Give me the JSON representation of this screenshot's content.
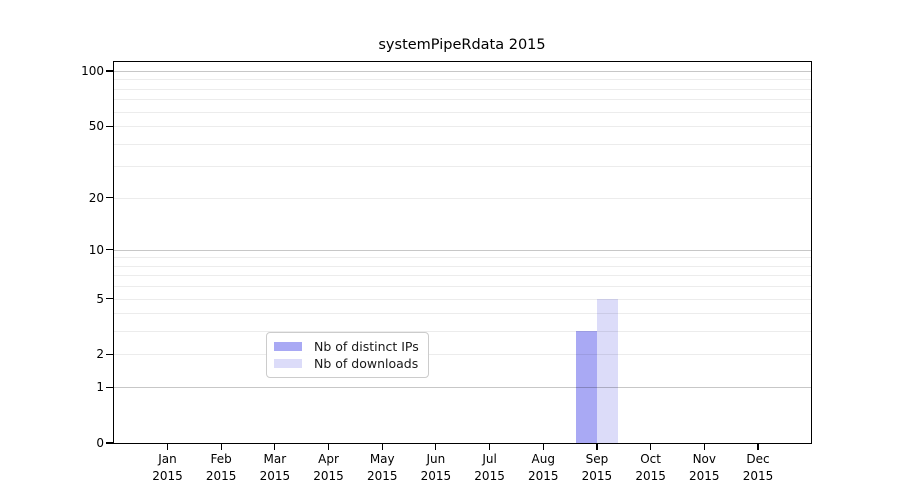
{
  "chart_data": {
    "type": "bar",
    "title": "systemPipeRdata 2015",
    "x_categories": [
      {
        "month": "Jan",
        "year": "2015"
      },
      {
        "month": "Feb",
        "year": "2015"
      },
      {
        "month": "Mar",
        "year": "2015"
      },
      {
        "month": "Apr",
        "year": "2015"
      },
      {
        "month": "May",
        "year": "2015"
      },
      {
        "month": "Jun",
        "year": "2015"
      },
      {
        "month": "Jul",
        "year": "2015"
      },
      {
        "month": "Aug",
        "year": "2015"
      },
      {
        "month": "Sep",
        "year": "2015"
      },
      {
        "month": "Oct",
        "year": "2015"
      },
      {
        "month": "Nov",
        "year": "2015"
      },
      {
        "month": "Dec",
        "year": "2015"
      }
    ],
    "series": [
      {
        "name": "Nb of distinct IPs",
        "color": "#a9a9f4",
        "values": [
          0,
          0,
          0,
          0,
          0,
          0,
          0,
          0,
          3,
          0,
          0,
          0
        ]
      },
      {
        "name": "Nb of downloads",
        "color": "#dcdcf9",
        "values": [
          0,
          0,
          0,
          0,
          0,
          0,
          0,
          0,
          5,
          0,
          0,
          0
        ]
      }
    ],
    "yticks": [
      0,
      1,
      2,
      5,
      10,
      20,
      50,
      100
    ],
    "scale": "log1p",
    "ylim": [
      0,
      112
    ],
    "grid": {
      "major": [
        1,
        10,
        100
      ],
      "minor": [
        2,
        3,
        4,
        5,
        6,
        7,
        8,
        9,
        20,
        30,
        40,
        50,
        60,
        70,
        80,
        90
      ]
    },
    "legend_position": "bottom-center",
    "xlabel": "",
    "ylabel": ""
  }
}
